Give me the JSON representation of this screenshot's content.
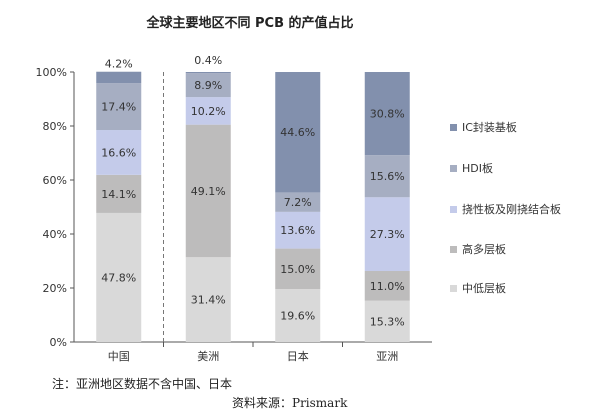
{
  "title": "全球主要地区不同 PCB 的产值占比",
  "note": "注：亚洲地区数据不含中国、日本",
  "source": "资料来源：Prismark",
  "chart_data": {
    "type": "bar",
    "stacked": true,
    "categories": [
      "中国",
      "美洲",
      "日本",
      "亚洲"
    ],
    "series": [
      {
        "name": "中低层板",
        "values": [
          47.8,
          31.4,
          19.6,
          15.3
        ],
        "labels": [
          "47.8%",
          "31.4%",
          "19.6%",
          "15.3%"
        ],
        "color": "#d9d9d9"
      },
      {
        "name": "高多层板",
        "values": [
          14.1,
          49.1,
          15.0,
          11.0
        ],
        "labels": [
          "14.1%",
          "49.1%",
          "15.0%",
          "11.0%"
        ],
        "color": "#bdbcbc"
      },
      {
        "name": "挠性板及刚挠结合板",
        "values": [
          16.6,
          10.2,
          13.6,
          27.3
        ],
        "labels": [
          "16.6%",
          "10.2%",
          "13.6%",
          "27.3%"
        ],
        "color": "#c4cbea"
      },
      {
        "name": "HDI板",
        "values": [
          17.4,
          8.9,
          7.2,
          15.6
        ],
        "labels": [
          "17.4%",
          "8.9%",
          "7.2%",
          "15.6%"
        ],
        "color": "#a6aec2"
      },
      {
        "name": "IC封装基板",
        "values": [
          4.2,
          0.4,
          44.6,
          30.8
        ],
        "labels": [
          "4.2%",
          "0.4%",
          "44.6%",
          "30.8%"
        ],
        "color": "#8290ad"
      }
    ],
    "y_ticks": [
      "0%",
      "20%",
      "40%",
      "60%",
      "80%",
      "100%"
    ],
    "ylim": [
      0,
      100
    ],
    "legend_position": "right",
    "grid": false
  }
}
